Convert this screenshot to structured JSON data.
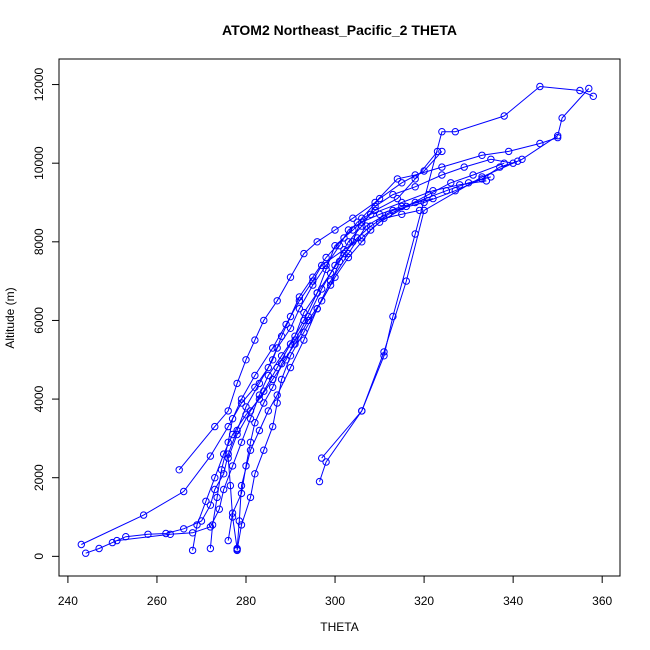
{
  "chart_data": {
    "type": "scatter",
    "title": "ATOM2 Northeast_Pacific_2 THETA",
    "xlabel": "THETA",
    "ylabel": "Altitude (m)",
    "xlim": [
      238,
      364
    ],
    "ylim": [
      -500,
      12650
    ],
    "x_ticks": [
      240,
      260,
      280,
      300,
      320,
      340,
      360
    ],
    "y_ticks": [
      0,
      2000,
      4000,
      6000,
      8000,
      10000,
      12000
    ],
    "x_tick_labels": [
      "240",
      "260",
      "280",
      "300",
      "320",
      "340",
      "360"
    ],
    "y_tick_labels": [
      "0",
      "2000",
      "4000",
      "6000",
      "8000",
      "10000",
      "12000"
    ],
    "grid": false,
    "legend": "none",
    "marker": "open-circle",
    "lines_connect_points": true,
    "color": "#0000ff",
    "series": [
      {
        "points": [
          [
            278,
            180
          ],
          [
            278.5,
            900
          ],
          [
            279,
            1800
          ],
          [
            281,
            2700
          ],
          [
            283,
            3200
          ],
          [
            285,
            3700
          ],
          [
            287,
            4100
          ],
          [
            290,
            4800
          ],
          [
            293,
            5500
          ],
          [
            296,
            6300
          ],
          [
            299,
            7000
          ],
          [
            303,
            7700
          ],
          [
            307,
            8400
          ],
          [
            313,
            8800
          ],
          [
            320,
            9000
          ],
          [
            327,
            9300
          ],
          [
            333,
            9600
          ],
          [
            337,
            9900
          ],
          [
            341,
            10050
          ]
        ]
      },
      {
        "points": [
          [
            278,
            200
          ],
          [
            277,
            1000
          ],
          [
            276.5,
            1800
          ],
          [
            276,
            2500
          ],
          [
            278,
            3100
          ],
          [
            281,
            3700
          ],
          [
            284,
            4200
          ],
          [
            287,
            4800
          ],
          [
            290,
            5400
          ],
          [
            293,
            6000
          ],
          [
            296,
            6700
          ],
          [
            298,
            7300
          ],
          [
            300,
            7900
          ],
          [
            304,
            8300
          ],
          [
            308,
            8700
          ],
          [
            315,
            9000
          ],
          [
            322,
            9300
          ],
          [
            328,
            9450
          ],
          [
            334,
            9550
          ]
        ]
      },
      {
        "points": [
          [
            272,
            200
          ],
          [
            272.5,
            800
          ],
          [
            273.5,
            1500
          ],
          [
            274.5,
            2200
          ],
          [
            276,
            2900
          ],
          [
            277,
            3500
          ],
          [
            279,
            4000
          ],
          [
            282,
            4600
          ],
          [
            286,
            5300
          ],
          [
            289,
            5900
          ],
          [
            292,
            6500
          ],
          [
            295,
            7000
          ],
          [
            297,
            7400
          ],
          [
            302,
            7800
          ],
          [
            306,
            8100
          ],
          [
            310,
            8500
          ],
          [
            316,
            8900
          ],
          [
            321,
            9200
          ],
          [
            326,
            9500
          ],
          [
            331,
            9700
          ],
          [
            338,
            10000
          ]
        ]
      },
      {
        "points": [
          [
            278,
            150
          ],
          [
            279,
            800
          ],
          [
            281,
            1500
          ],
          [
            282,
            2100
          ],
          [
            284,
            2700
          ],
          [
            286,
            3300
          ],
          [
            287,
            3900
          ],
          [
            288,
            4500
          ],
          [
            290,
            5100
          ],
          [
            293,
            5700
          ],
          [
            296,
            6300
          ],
          [
            299,
            6900
          ],
          [
            301,
            7500
          ],
          [
            304,
            8000
          ],
          [
            306,
            8600
          ],
          [
            310,
            9100
          ],
          [
            315,
            9500
          ],
          [
            320,
            9800
          ],
          [
            324,
            10300
          ]
        ]
      },
      {
        "points": [
          [
            268,
            150
          ],
          [
            269,
            800
          ],
          [
            271,
            1400
          ],
          [
            273,
            2000
          ],
          [
            275,
            2600
          ],
          [
            277,
            3100
          ],
          [
            280,
            3600
          ],
          [
            283,
            4000
          ],
          [
            286,
            4500
          ],
          [
            289,
            5000
          ],
          [
            291,
            5500
          ],
          [
            294,
            6100
          ],
          [
            297,
            6800
          ],
          [
            300,
            7400
          ],
          [
            303,
            8000
          ],
          [
            306,
            8400
          ],
          [
            309,
            8900
          ],
          [
            313,
            9200
          ],
          [
            318,
            9400
          ],
          [
            324,
            9700
          ],
          [
            329,
            9900
          ],
          [
            335,
            10100
          ],
          [
            340,
            10000
          ]
        ]
      },
      {
        "points": [
          [
            244,
            80
          ],
          [
            247,
            200
          ],
          [
            250,
            350
          ],
          [
            253,
            500
          ],
          [
            258,
            560
          ],
          [
            262,
            580
          ],
          [
            266,
            700
          ],
          [
            270,
            900
          ],
          [
            272,
            1300
          ],
          [
            273,
            1700
          ],
          [
            275,
            2100
          ],
          [
            276,
            2600
          ],
          [
            278,
            3200
          ],
          [
            280,
            3800
          ],
          [
            283,
            4400
          ],
          [
            286,
            5000
          ],
          [
            288,
            5600
          ],
          [
            290,
            6100
          ],
          [
            292,
            6600
          ],
          [
            295,
            7100
          ],
          [
            298,
            7600
          ],
          [
            302,
            8100
          ],
          [
            305,
            8500
          ],
          [
            309,
            8800
          ],
          [
            314,
            9100
          ],
          [
            318,
            9600
          ],
          [
            323,
            10300
          ]
        ]
      },
      {
        "points": [
          [
            243,
            300
          ],
          [
            257,
            1050
          ],
          [
            266,
            1650
          ],
          [
            272,
            2550
          ],
          [
            276,
            3300
          ],
          [
            279,
            3900
          ],
          [
            282,
            4300
          ],
          [
            285,
            4800
          ],
          [
            287,
            5300
          ],
          [
            290,
            5800
          ],
          [
            292,
            6300
          ],
          [
            295,
            6900
          ],
          [
            298,
            7400
          ],
          [
            301,
            7900
          ],
          [
            303,
            8300
          ],
          [
            306,
            8500
          ],
          [
            310,
            8700
          ],
          [
            315,
            8900
          ],
          [
            322,
            9100
          ]
        ]
      },
      {
        "points": [
          [
            251,
            400
          ],
          [
            263,
            560
          ],
          [
            268,
            600
          ],
          [
            272,
            750
          ],
          [
            274,
            1200
          ],
          [
            275,
            1700
          ],
          [
            277,
            2300
          ],
          [
            279,
            2900
          ],
          [
            281,
            3500
          ],
          [
            283,
            4100
          ],
          [
            285,
            4600
          ],
          [
            288,
            5100
          ],
          [
            291,
            5600
          ],
          [
            293,
            6200
          ],
          [
            296,
            6700
          ],
          [
            299,
            7200
          ],
          [
            302,
            7700
          ],
          [
            305,
            8100
          ],
          [
            308,
            8400
          ],
          [
            312,
            8700
          ],
          [
            318,
            9000
          ],
          [
            325,
            9300
          ],
          [
            330,
            9500
          ],
          [
            335,
            9650
          ]
        ]
      },
      {
        "points": [
          [
            296.5,
            1900
          ],
          [
            298,
            2400
          ],
          [
            306,
            3700
          ],
          [
            311,
            5100
          ],
          [
            313,
            6100
          ],
          [
            318,
            8200
          ],
          [
            324,
            10800
          ],
          [
            327,
            10800
          ],
          [
            338,
            11200
          ],
          [
            346,
            11950
          ],
          [
            355,
            11850
          ],
          [
            358,
            11700
          ]
        ]
      },
      {
        "points": [
          [
            297,
            2500
          ],
          [
            306,
            3700
          ],
          [
            311,
            5200
          ],
          [
            316,
            7000
          ],
          [
            320,
            8800
          ],
          [
            333,
            9650
          ],
          [
            342,
            10100
          ],
          [
            350,
            10700
          ],
          [
            351,
            11150
          ],
          [
            357,
            11900
          ]
        ]
      },
      {
        "points": [
          [
            265,
            2200
          ],
          [
            273,
            3300
          ],
          [
            276,
            3700
          ],
          [
            278,
            4400
          ],
          [
            280,
            5000
          ],
          [
            282,
            5500
          ],
          [
            284,
            6000
          ],
          [
            287,
            6500
          ],
          [
            290,
            7100
          ],
          [
            293,
            7700
          ],
          [
            296,
            8000
          ],
          [
            300,
            8300
          ],
          [
            304,
            8600
          ],
          [
            309,
            9000
          ],
          [
            314,
            9600
          ],
          [
            318,
            9700
          ],
          [
            324,
            9900
          ],
          [
            333,
            10200
          ],
          [
            339,
            10300
          ],
          [
            346,
            10500
          ],
          [
            350,
            10650
          ]
        ]
      },
      {
        "points": [
          [
            276,
            400
          ],
          [
            277,
            1100
          ],
          [
            279,
            1600
          ],
          [
            280,
            2300
          ],
          [
            281,
            2900
          ],
          [
            282,
            3400
          ],
          [
            284,
            3900
          ],
          [
            286,
            4300
          ],
          [
            288,
            4900
          ],
          [
            291,
            5400
          ],
          [
            294,
            6000
          ],
          [
            297,
            6500
          ],
          [
            300,
            7100
          ],
          [
            303,
            7600
          ],
          [
            306,
            8000
          ],
          [
            308,
            8300
          ],
          [
            311,
            8600
          ],
          [
            315,
            8700
          ],
          [
            319,
            8800
          ]
        ]
      }
    ]
  }
}
